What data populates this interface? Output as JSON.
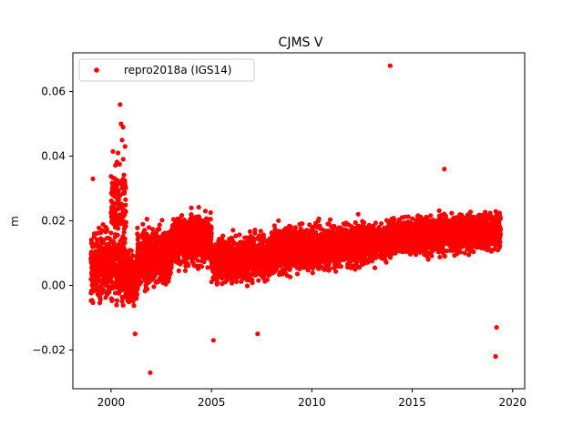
{
  "chart_data": {
    "type": "scatter",
    "title": "CJMS V",
    "xlabel": "",
    "ylabel": "m",
    "xlim": [
      1998.1,
      2020.6
    ],
    "ylim": [
      -0.032,
      0.072
    ],
    "xticks": [
      2000,
      2005,
      2010,
      2015,
      2020
    ],
    "xtick_labels": [
      "2000",
      "2005",
      "2010",
      "2015",
      "2020"
    ],
    "yticks": [
      -0.02,
      0.0,
      0.02,
      0.04,
      0.06
    ],
    "ytick_labels": [
      "−0.02",
      "0.00",
      "0.02",
      "0.04",
      "0.06"
    ],
    "grid": false,
    "legend_position": "upper-left",
    "series": [
      {
        "name": "repro2018a (IGS14)",
        "color": "#ff0000",
        "marker": "circle",
        "segments": [
          {
            "x_start": 1999.0,
            "x_end": 2000.7,
            "mean": 0.006,
            "spread": 0.011
          },
          {
            "x_start": 2000.7,
            "x_end": 2001.3,
            "mean": 0.002,
            "spread": 0.008
          },
          {
            "x_start": 2001.3,
            "x_end": 2003.0,
            "mean": 0.009,
            "spread": 0.009
          },
          {
            "x_start": 2003.0,
            "x_end": 2005.0,
            "mean": 0.014,
            "spread": 0.008
          },
          {
            "x_start": 2005.0,
            "x_end": 2008.0,
            "mean": 0.008,
            "spread": 0.007
          },
          {
            "x_start": 2008.0,
            "x_end": 2013.8,
            "mean": 0.012,
            "spread": 0.007
          },
          {
            "x_start": 2013.8,
            "x_end": 2019.4,
            "mean": 0.016,
            "spread": 0.006
          }
        ],
        "notable_points": [
          {
            "x": 2000.45,
            "y": 0.056
          },
          {
            "x": 2000.5,
            "y": 0.05
          },
          {
            "x": 2000.6,
            "y": 0.049
          },
          {
            "x": 2000.55,
            "y": 0.045
          },
          {
            "x": 2000.35,
            "y": 0.041
          },
          {
            "x": 2000.7,
            "y": 0.043
          },
          {
            "x": 2001.95,
            "y": -0.027
          },
          {
            "x": 2013.9,
            "y": 0.068
          },
          {
            "x": 2016.6,
            "y": 0.036
          },
          {
            "x": 2019.15,
            "y": -0.022
          },
          {
            "x": 1999.1,
            "y": 0.033
          },
          {
            "x": 2005.1,
            "y": -0.017
          },
          {
            "x": 2007.3,
            "y": -0.015
          },
          {
            "x": 2019.2,
            "y": -0.013
          },
          {
            "x": 2001.2,
            "y": -0.015
          }
        ]
      }
    ]
  }
}
